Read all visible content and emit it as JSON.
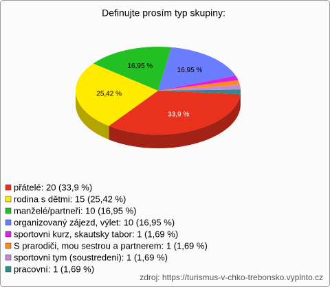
{
  "chart_data": {
    "type": "pie3d",
    "title": "Definujte prosím typ skupiny:",
    "categories": [
      "přátelé",
      "rodina s dětmi",
      "manželé/partneři",
      "organizovaný zájezd, výlet",
      "sportovni kurz, skautsky tabor",
      "S prarodiči, mou sestrou a partnerem",
      "sportovni tym (soustredeni)",
      "pracovní"
    ],
    "values": [
      33.9,
      25.42,
      16.95,
      16.95,
      1.69,
      1.69,
      1.69,
      1.69
    ],
    "value_labels": [
      "33,9 %",
      "25,42 %",
      "16,95 %",
      "16,95 %",
      null,
      null,
      null,
      null
    ],
    "legend_labels": [
      "přátelé: 20 (33,9 %)",
      "rodina s dětmi: 15 (25,42 %)",
      "manželé/partneři: 10 (16,95 %)",
      "organizovaný zájezd, výlet: 10 (16,95 %)",
      "sportovni kurz, skautsky tabor: 1 (1,69 %)",
      "S prarodiči, mou sestrou a partnerem: 1 (1,69 %)",
      "sportovni tym (soustredeni): 1 (1,69 %)",
      "pracovní: 1 (1,69 %)"
    ],
    "colors": [
      "#e8321e",
      "#ffea00",
      "#22c022",
      "#6a7dff",
      "#e020e0",
      "#ff8c1a",
      "#c58ad6",
      "#2a8c8c"
    ],
    "source": "zdroj: https://turismus-v-chko-trebonsko.vyplnto.cz"
  }
}
